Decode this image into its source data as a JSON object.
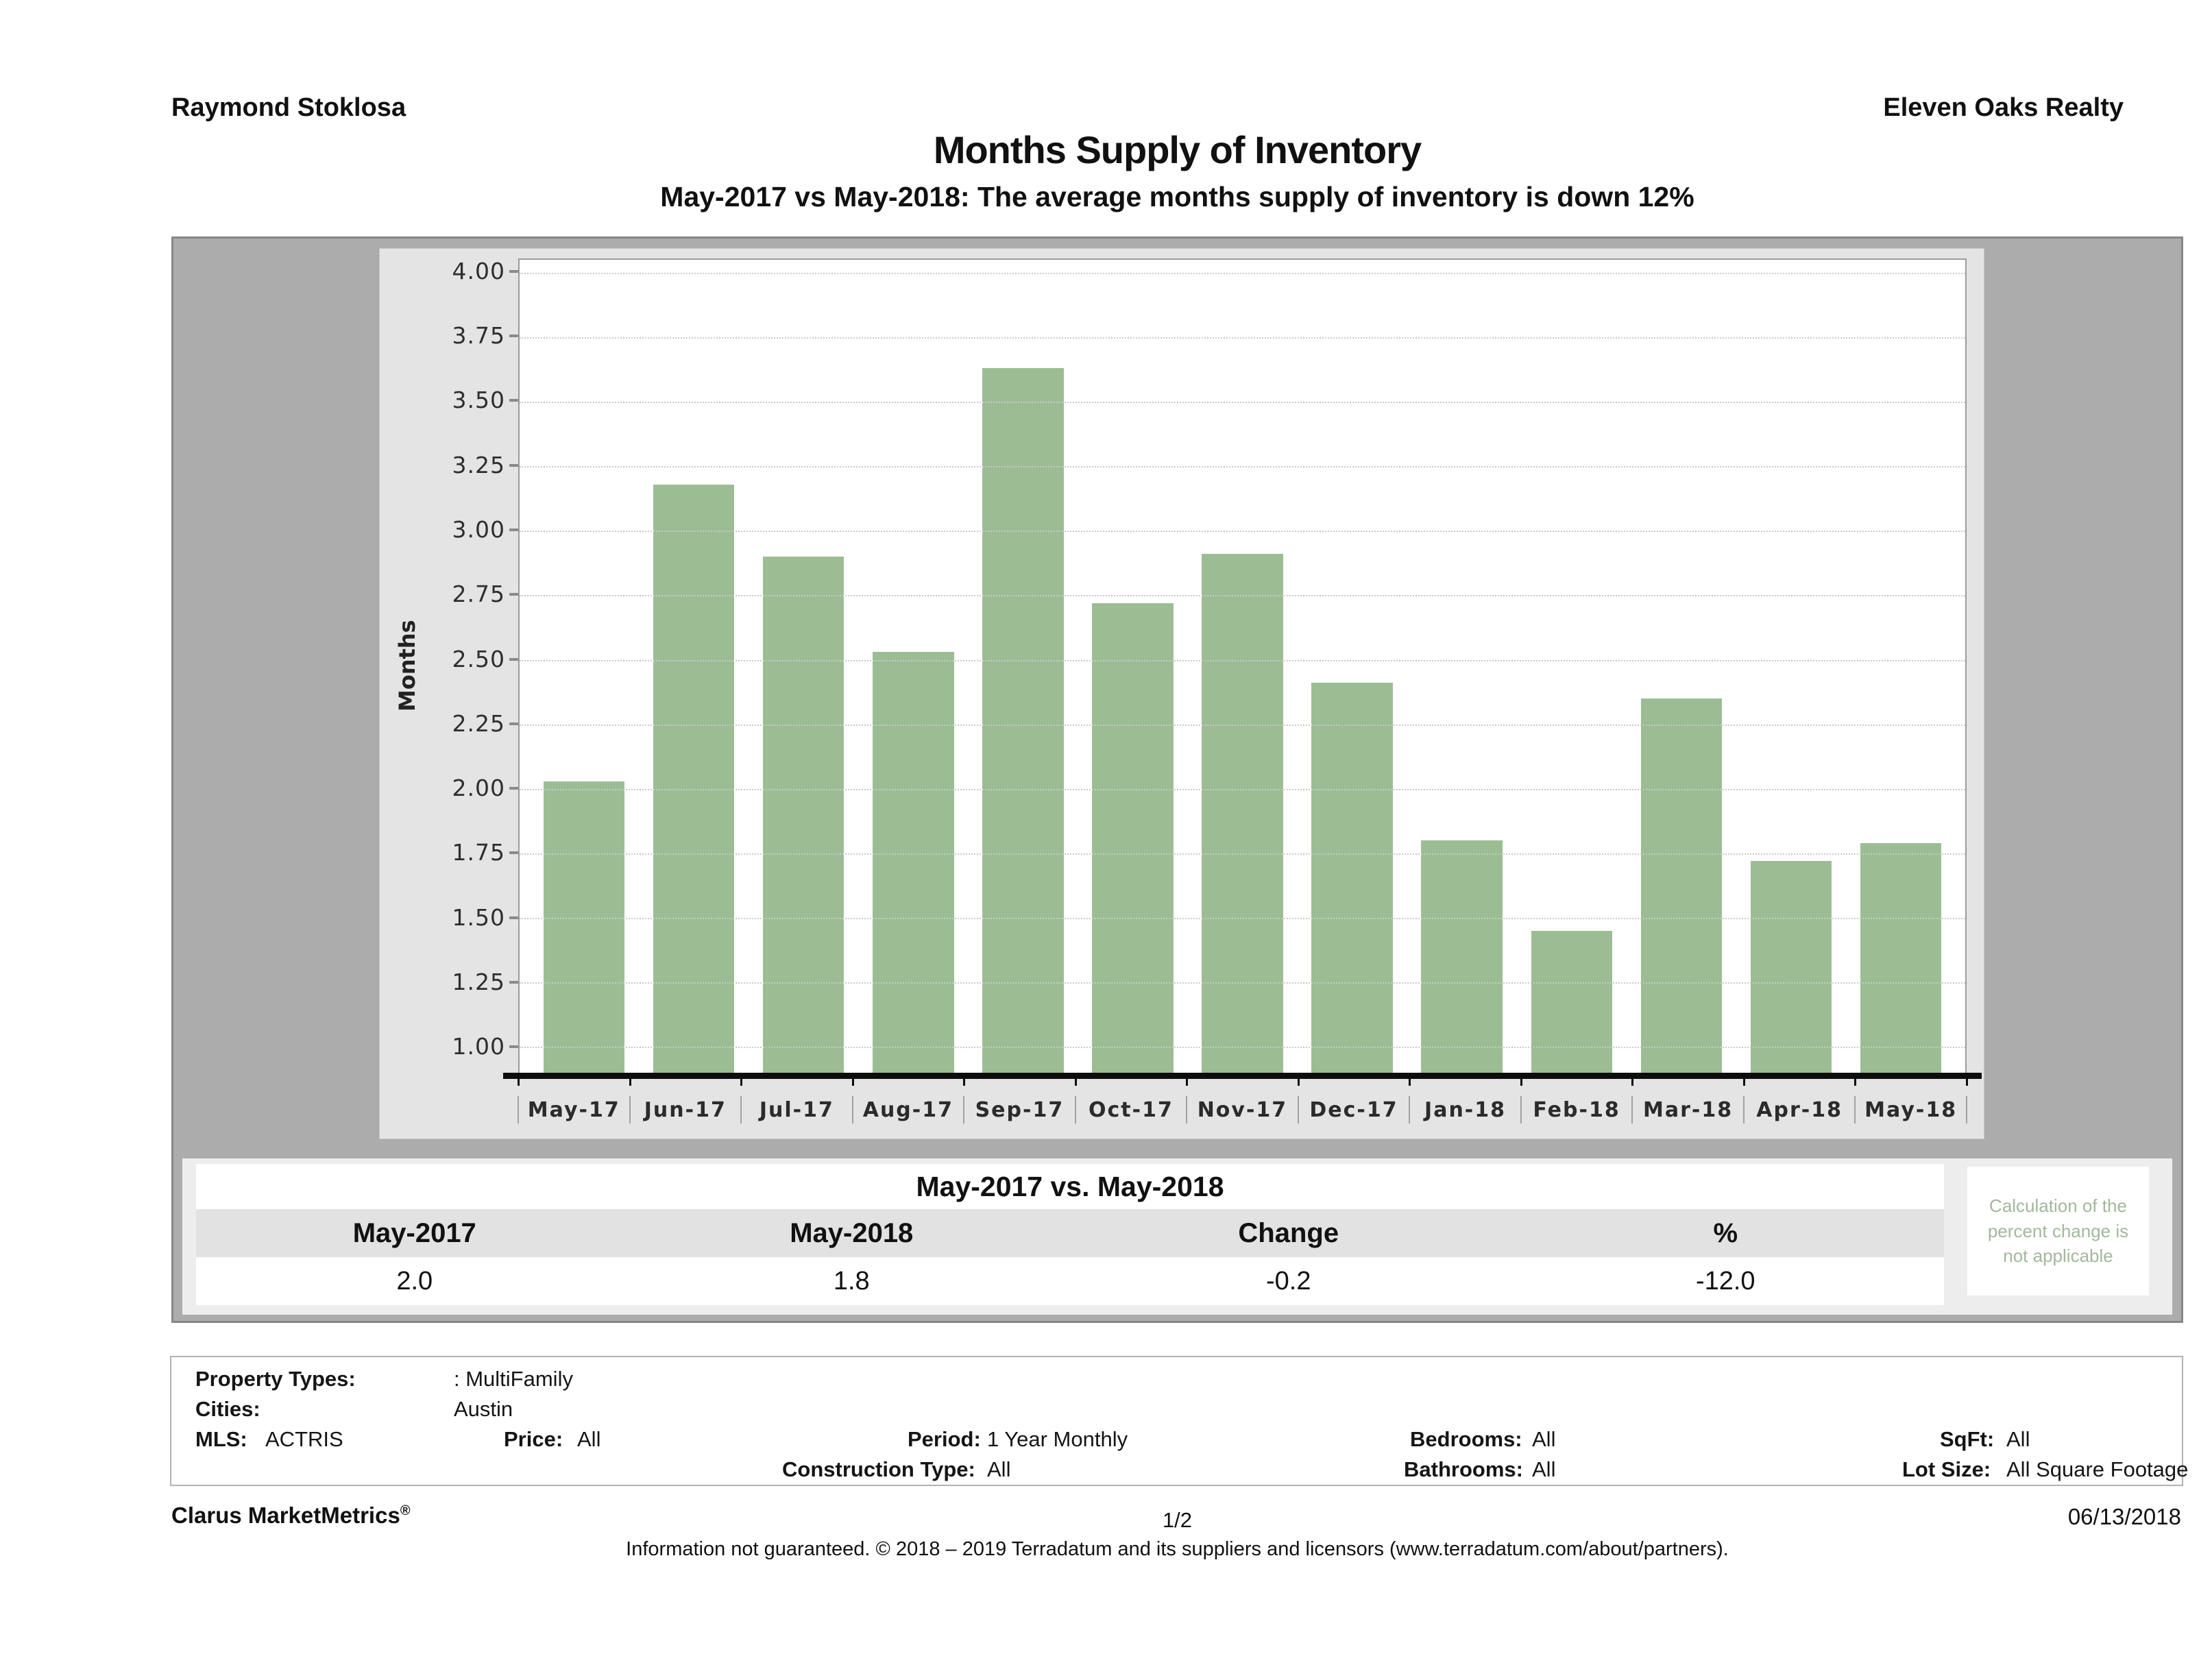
{
  "header": {
    "left": "Raymond Stoklosa",
    "right": "Eleven Oaks Realty"
  },
  "title": "Months Supply of Inventory",
  "subtitle": "May-2017 vs May-2018: The average months supply of inventory is down 12%",
  "chart_data": {
    "type": "bar",
    "categories": [
      "May-17",
      "Jun-17",
      "Jul-17",
      "Aug-17",
      "Sep-17",
      "Oct-17",
      "Nov-17",
      "Dec-17",
      "Jan-18",
      "Feb-18",
      "Mar-18",
      "Apr-18",
      "May-18"
    ],
    "values": [
      2.03,
      3.18,
      2.9,
      2.53,
      3.63,
      2.72,
      2.91,
      2.41,
      1.8,
      1.45,
      2.35,
      1.72,
      1.79
    ],
    "title": "",
    "xlabel": "",
    "ylabel": "Months",
    "yticks": [
      4.0,
      3.75,
      3.5,
      3.25,
      3.0,
      2.75,
      2.5,
      2.25,
      2.0,
      1.75,
      1.5,
      1.25,
      1.0
    ],
    "ylim": [
      0.9,
      4.05
    ],
    "grid": true,
    "legend": false,
    "bar_color": "#9cbd94"
  },
  "comparison_table": {
    "title": "May-2017 vs. May-2018",
    "columns": [
      "May-2017",
      "May-2018",
      "Change",
      "%"
    ],
    "values": [
      "2.0",
      "1.8",
      "-0.2",
      "-12.0"
    ],
    "note": "Calculation of the percent change is not applicable"
  },
  "filters": {
    "property_types": {
      "label": "Property Types:",
      "value": ": MultiFamily"
    },
    "cities": {
      "label": "Cities:",
      "value": "Austin"
    },
    "mls": {
      "label": "MLS:",
      "value": "ACTRIS"
    },
    "price": {
      "label": "Price:",
      "value": "All"
    },
    "period": {
      "label": "Period:",
      "value": "1 Year Monthly"
    },
    "construction_type": {
      "label": "Construction Type:",
      "value": "All"
    },
    "bedrooms": {
      "label": "Bedrooms:",
      "value": "All"
    },
    "bathrooms": {
      "label": "Bathrooms:",
      "value": "All"
    },
    "sqft": {
      "label": "SqFt:",
      "value": "All"
    },
    "lot_size": {
      "label": "Lot Size:",
      "value": "All Square Footage"
    }
  },
  "footer": {
    "brand": "Clarus MarketMetrics",
    "brand_mark": "®",
    "page": "1/2",
    "date": "06/13/2018",
    "disclaimer": "Information not guaranteed. © 2018 – 2019 Terradatum and its suppliers and licensors (www.terradatum.com/about/partners)."
  }
}
